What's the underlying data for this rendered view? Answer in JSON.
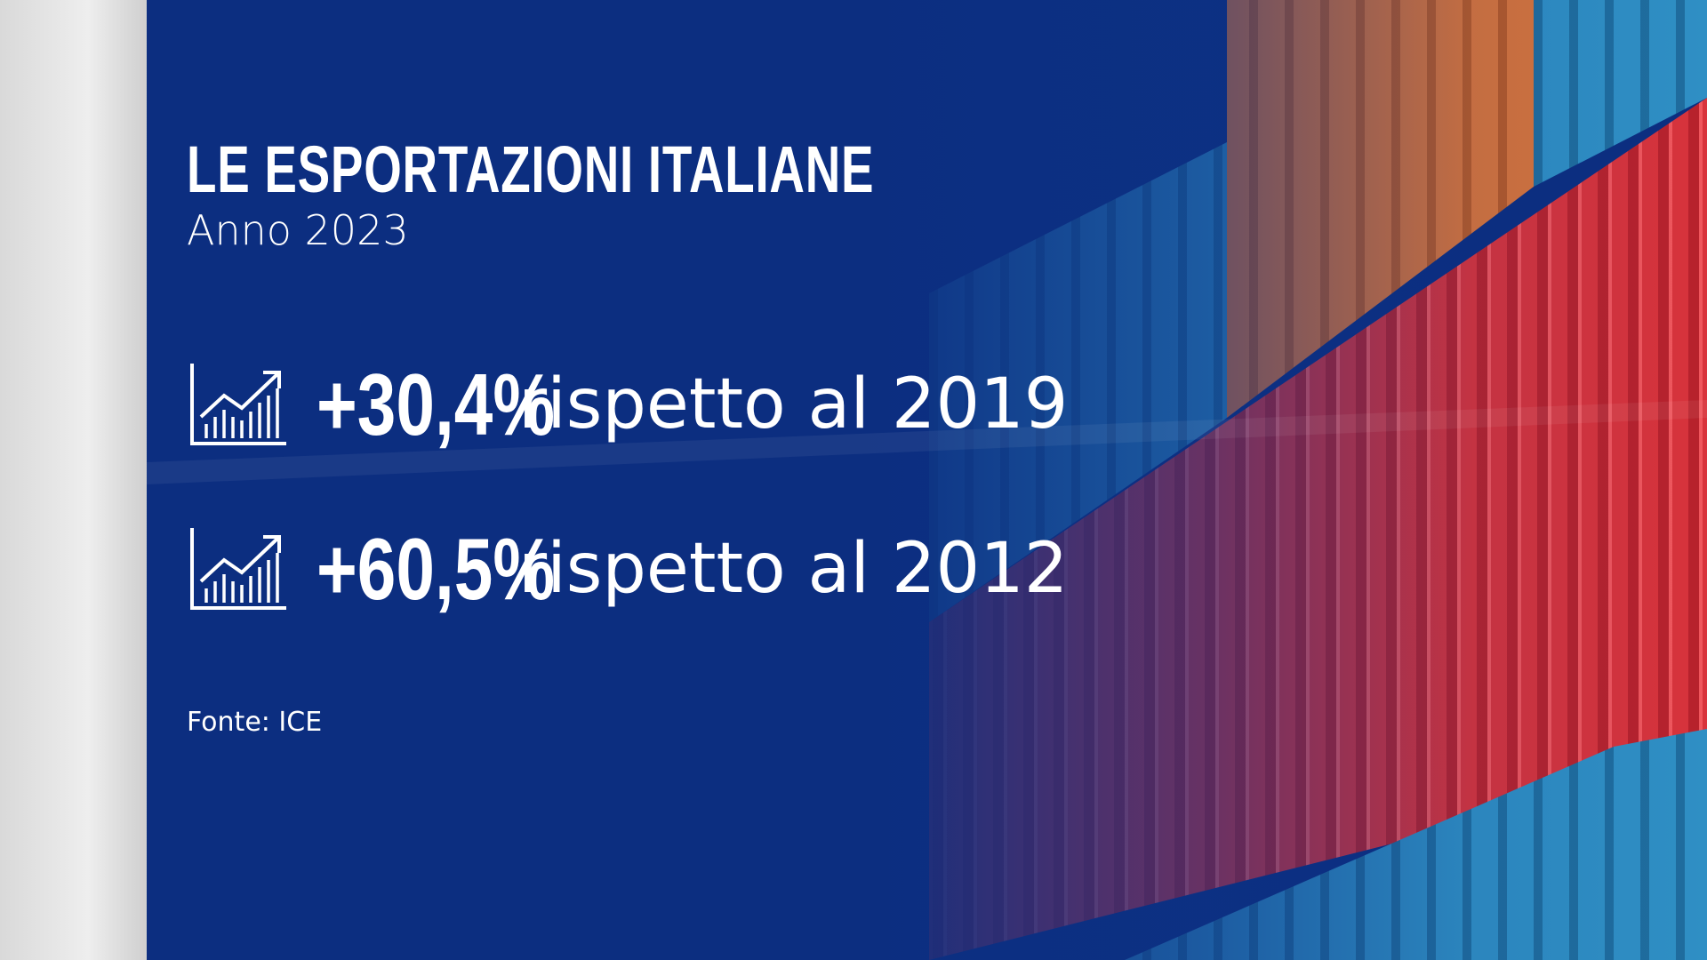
{
  "header": {
    "title": "LE ESPORTAZIONI ITALIANE",
    "subtitle": "Anno 2023"
  },
  "stats": [
    {
      "value": "+30,4%",
      "text": "rispetto al 2019"
    },
    {
      "value": "+60,5%",
      "text": "rispetto al 2012"
    }
  ],
  "source": "Fonte: ICE"
}
